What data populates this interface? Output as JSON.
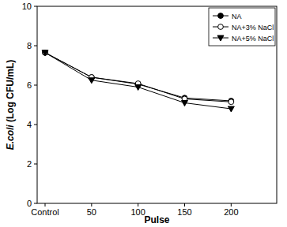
{
  "chart_data": {
    "type": "line",
    "x_label": "Pulse",
    "y_label": "E.coli (Log CFU/mL)",
    "categories": [
      "Control",
      "50",
      "100",
      "150",
      "200"
    ],
    "series": [
      {
        "name": "NA",
        "color": "#000000",
        "marker": "circle",
        "values": [
          7.65,
          6.4,
          6.05,
          5.35,
          5.2
        ]
      },
      {
        "name": "NA+3% NaCl",
        "color": "#000000",
        "marker": "circle-open",
        "values": [
          7.65,
          6.4,
          6.08,
          5.3,
          5.15
        ]
      },
      {
        "name": "NA+5% NaCl",
        "color": "#000000",
        "marker": "triangle-down",
        "values": [
          7.65,
          6.25,
          5.9,
          5.1,
          4.8
        ]
      }
    ],
    "ylim": [
      0,
      10
    ],
    "yticks": [
      0,
      2,
      4,
      6,
      8,
      10
    ],
    "grid": false,
    "legend": "top-right"
  }
}
